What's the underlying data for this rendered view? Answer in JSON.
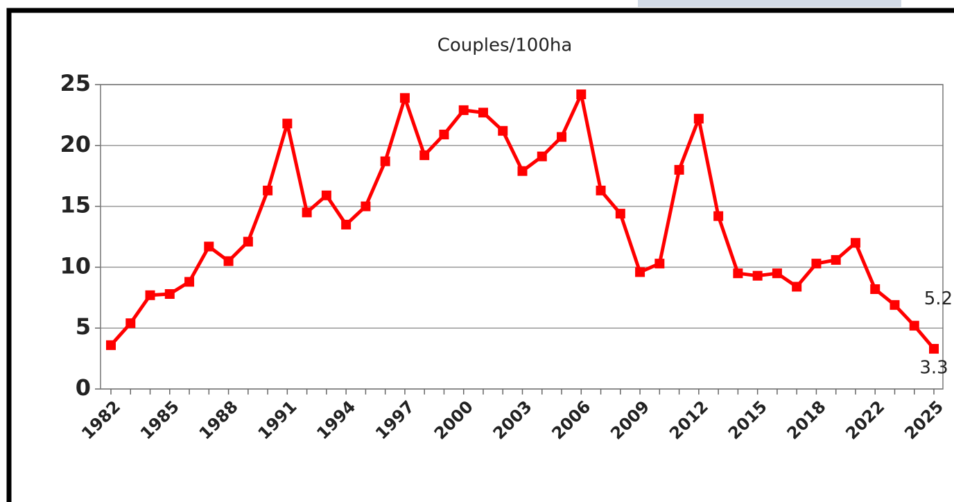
{
  "chart_data": {
    "type": "line",
    "title": "Couples/100ha",
    "categories": [
      "1982",
      null,
      null,
      "1985",
      null,
      null,
      "1988",
      null,
      null,
      "1991",
      null,
      null,
      "1994",
      null,
      null,
      "1997",
      null,
      null,
      "2000",
      null,
      null,
      "2003",
      null,
      null,
      "2006",
      null,
      null,
      "2009",
      null,
      null,
      "2012",
      null,
      null,
      "2015",
      null,
      null,
      "2018",
      null,
      null,
      "2022",
      null,
      null,
      "2025"
    ],
    "series": [
      {
        "name": null,
        "color": "#ff0000",
        "values": [
          3.6,
          5.4,
          7.7,
          7.8,
          8.8,
          11.7,
          10.5,
          12.1,
          16.3,
          21.8,
          14.5,
          15.9,
          13.5,
          15.0,
          18.7,
          23.9,
          19.2,
          20.9,
          22.9,
          22.7,
          21.2,
          17.9,
          19.1,
          20.7,
          24.2,
          16.3,
          14.4,
          9.6,
          10.3,
          18.0,
          22.2,
          14.2,
          9.5,
          9.3,
          9.5,
          8.4,
          10.3,
          10.6,
          12.0,
          8.2,
          6.9,
          5.2,
          3.3
        ],
        "value_labels": [
          null,
          null,
          null,
          null,
          null,
          null,
          null,
          null,
          null,
          null,
          null,
          null,
          null,
          null,
          null,
          null,
          null,
          null,
          null,
          null,
          null,
          null,
          null,
          null,
          null,
          null,
          null,
          null,
          null,
          null,
          null,
          null,
          null,
          null,
          null,
          null,
          null,
          null,
          null,
          null,
          null,
          "5.2",
          "3.3"
        ]
      }
    ],
    "ylim": [
      0,
      25
    ],
    "yticks": [
      0,
      5,
      10,
      15,
      20,
      25
    ],
    "grid": true
  }
}
